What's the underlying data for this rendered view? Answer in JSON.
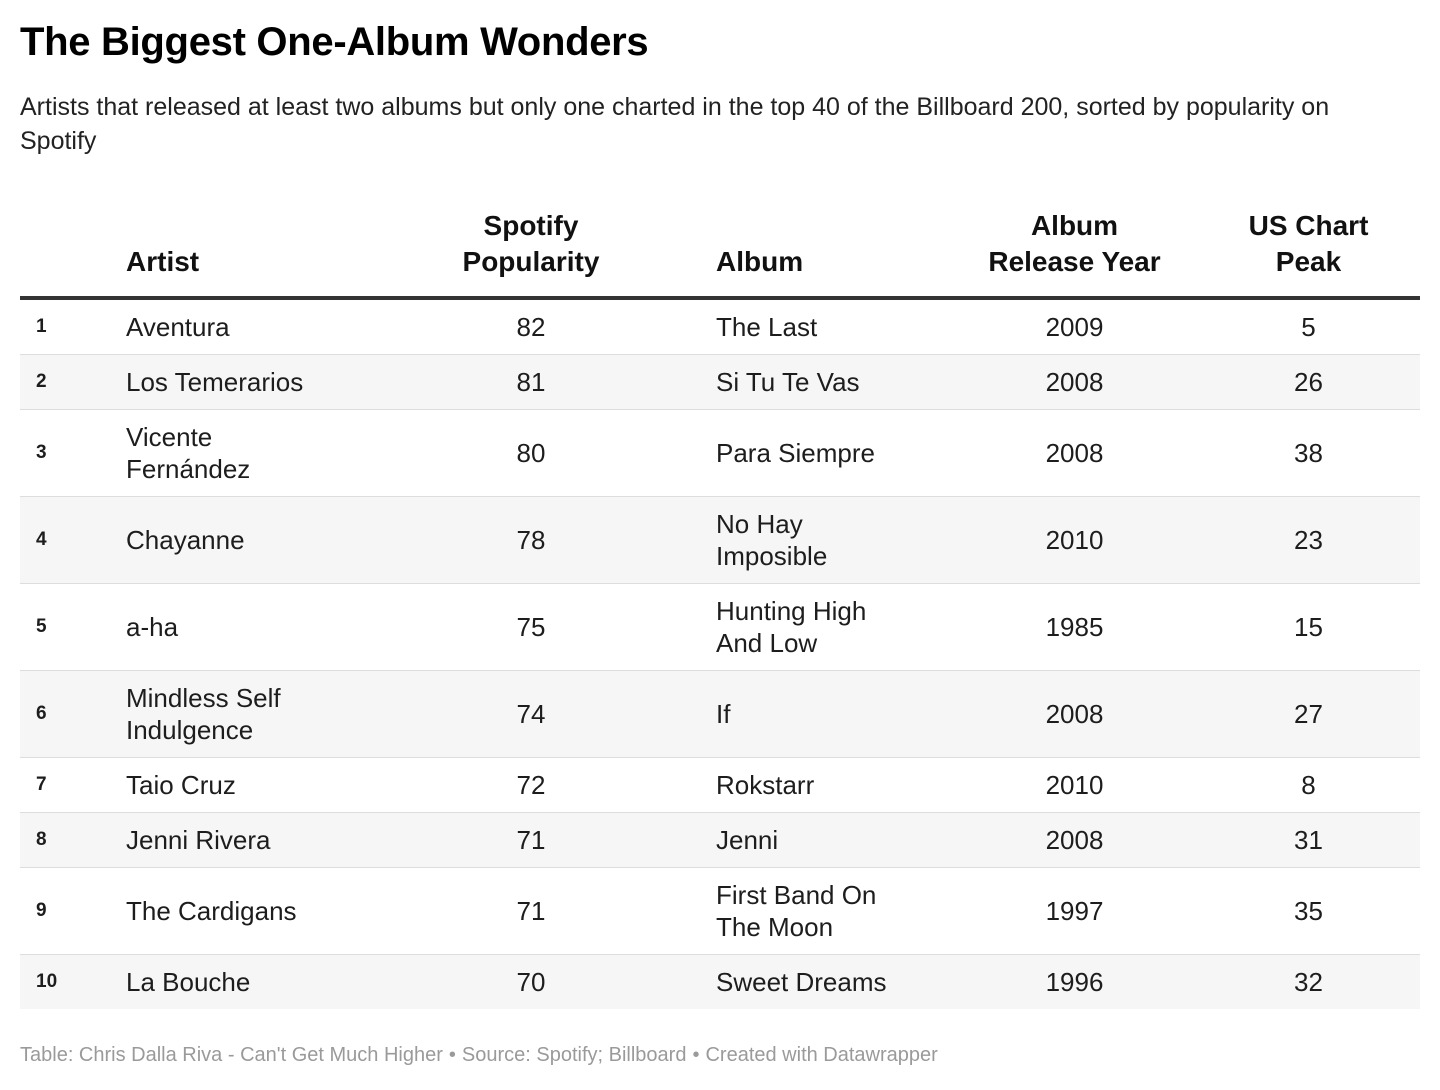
{
  "title": "The Biggest One-Album Wonders",
  "subtitle": "Artists that released at least two albums but only one charted in the top 40 of the Billboard 200, sorted by popularity on Spotify",
  "chart_data": {
    "type": "table",
    "columns": [
      "",
      "Artist",
      "Spotify Popularity",
      "Album",
      "Album Release Year",
      "US Chart Peak"
    ],
    "rows": [
      {
        "rank": "1",
        "artist": "Aventura",
        "popularity": "82",
        "album": "The Last",
        "year": "2009",
        "peak": "5"
      },
      {
        "rank": "2",
        "artist": "Los Temerarios",
        "popularity": "81",
        "album": "Si Tu Te Vas",
        "year": "2008",
        "peak": "26"
      },
      {
        "rank": "3",
        "artist": "Vicente Fernández",
        "popularity": "80",
        "album": "Para Siempre",
        "year": "2008",
        "peak": "38"
      },
      {
        "rank": "4",
        "artist": "Chayanne",
        "popularity": "78",
        "album": "No Hay Imposible",
        "year": "2010",
        "peak": "23"
      },
      {
        "rank": "5",
        "artist": "a-ha",
        "popularity": "75",
        "album": "Hunting High And Low",
        "year": "1985",
        "peak": "15"
      },
      {
        "rank": "6",
        "artist": "Mindless Self Indulgence",
        "popularity": "74",
        "album": "If",
        "year": "2008",
        "peak": "27"
      },
      {
        "rank": "7",
        "artist": "Taio Cruz",
        "popularity": "72",
        "album": "Rokstarr",
        "year": "2010",
        "peak": "8"
      },
      {
        "rank": "8",
        "artist": "Jenni Rivera",
        "popularity": "71",
        "album": "Jenni",
        "year": "2008",
        "peak": "31"
      },
      {
        "rank": "9",
        "artist": "The Cardigans",
        "popularity": "71",
        "album": "First Band On The Moon",
        "year": "1997",
        "peak": "35"
      },
      {
        "rank": "10",
        "artist": "La Bouche",
        "popularity": "70",
        "album": "Sweet Dreams",
        "year": "1996",
        "peak": "32"
      }
    ]
  },
  "footer": {
    "table_credit": "Table: Chris Dalla Riva - Can't Get Much Higher",
    "source": "Source: Spotify; Billboard",
    "created_with": "Created with Datawrapper",
    "separator": "•"
  }
}
